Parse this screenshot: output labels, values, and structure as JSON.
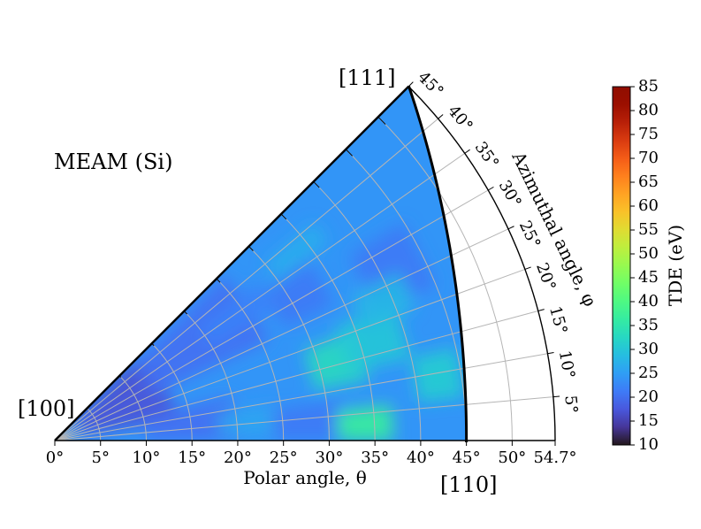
{
  "chart_data": {
    "type": "heatmap",
    "projection": "polar-sector",
    "label": "MEAM (Si)",
    "theta_axis": {
      "label": "Polar angle, θ",
      "ticks": [
        "0°",
        "5°",
        "10°",
        "15°",
        "20°",
        "25°",
        "30°",
        "35°",
        "40°",
        "45°",
        "50°",
        "54.7°"
      ],
      "tick_values": [
        0,
        5,
        10,
        15,
        20,
        25,
        30,
        35,
        40,
        45,
        50,
        54.7
      ],
      "range": [
        0,
        54.7
      ]
    },
    "phi_axis": {
      "label": "Azimuthal angle, φ",
      "ticks": [
        "5°",
        "10°",
        "15°",
        "20°",
        "25°",
        "30°",
        "35°",
        "40°",
        "45°"
      ],
      "tick_values": [
        5,
        10,
        15,
        20,
        25,
        30,
        35,
        40,
        45
      ],
      "range": [
        0,
        45
      ]
    },
    "corner_labels": [
      "[100]",
      "[110]",
      "[111]"
    ],
    "colorbar": {
      "label": "TDE (eV)",
      "min": 10,
      "max": 85,
      "ticks": [
        "10",
        "15",
        "20",
        "25",
        "30",
        "35",
        "40",
        "45",
        "50",
        "55",
        "60",
        "65",
        "70",
        "75",
        "80",
        "85"
      ],
      "tick_values": [
        10,
        15,
        20,
        25,
        30,
        35,
        40,
        45,
        50,
        55,
        60,
        65,
        70,
        75,
        80,
        85
      ],
      "colormap": "turbo"
    },
    "data_summary": {
      "low_region": "near [100], TDE approx 15-20 eV",
      "typical": "approx 22-28 eV",
      "high_spots": [
        {
          "theta": 34,
          "phi": 3,
          "tde": 40
        },
        {
          "theta": 31,
          "phi": 15,
          "tde": 34
        },
        {
          "theta": 38,
          "phi": 18,
          "tde": 32
        },
        {
          "theta": 42,
          "phi": 9,
          "tde": 33
        }
      ]
    }
  }
}
